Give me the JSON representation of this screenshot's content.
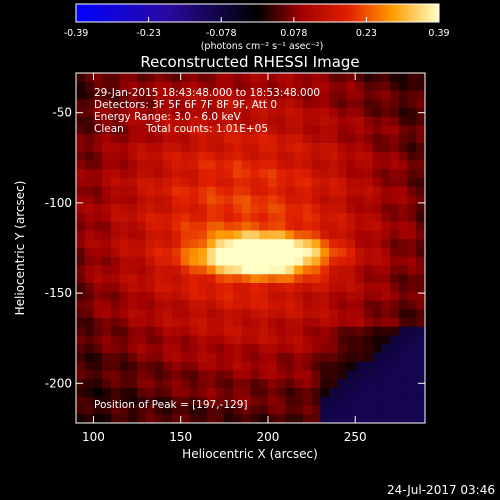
{
  "chart_data": {
    "type": "heatmap",
    "title": "Reconstructed RHESSI Image",
    "xlabel": "Heliocentric X (arcsec)",
    "ylabel": "Heliocentric Y (arcsec)",
    "xlim": [
      90,
      290
    ],
    "ylim": [
      -222,
      -28
    ],
    "xticks": [
      100,
      150,
      200,
      250
    ],
    "yticks": [
      -50,
      -100,
      -150,
      -200
    ],
    "colorbar": {
      "min": -0.39,
      "max": 0.39,
      "ticks": [
        "-0.39",
        "-0.23",
        "-0.078",
        "0.078",
        "0.23",
        "0.39"
      ],
      "unit_label": "(photons cm⁻² s⁻¹ asec⁻²)"
    },
    "source": {
      "x": 197,
      "y": -129,
      "peak_value": 0.39
    },
    "annotations": {
      "time_range": "29-Jan-2015 18:43:48.000 to 18:53:48.000",
      "detectors": "Detectors: 3F 5F 6F 7F 8F 9F, Att 0",
      "energy_range": "Energy Range: 3.0 - 6.0 keV",
      "clean_label": "Clean",
      "total_counts": "Total counts: 1.01E+05",
      "peak_position": "Position of Peak = [197,-129]"
    }
  },
  "footer": {
    "timestamp": "24-Jul-2017 03:46"
  }
}
